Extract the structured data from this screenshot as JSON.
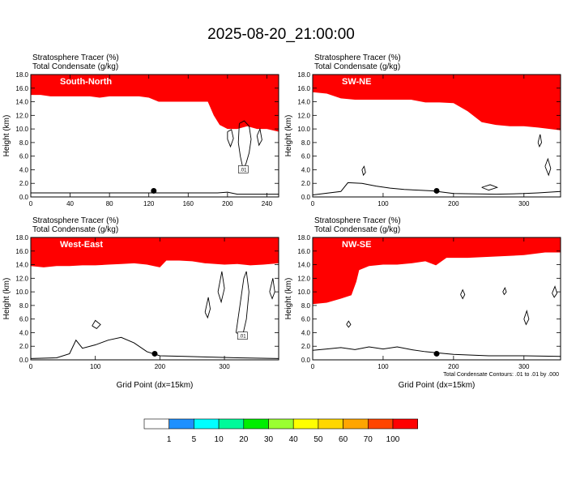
{
  "figure": {
    "title": "2025-08-20_21:00:00",
    "note": "Total Condensate Contours: .01 to .01 by .000"
  },
  "chart_data": [
    {
      "type": "heatmap",
      "panel": "South-North",
      "header_line1": "Stratosphere Tracer   (%)",
      "header_line2": "Total Condensate   (g/kg)",
      "xlabel": "",
      "ylabel": "Height (km)",
      "xlim": [
        0,
        252
      ],
      "ylim": [
        0,
        18
      ],
      "xticks": [
        "0",
        "40",
        "80",
        "120",
        "160",
        "200",
        "240"
      ],
      "yticks": [
        "0.0",
        "2.0",
        "4.0",
        "6.0",
        "8.0",
        "10.0",
        "12.0",
        "14.0",
        "16.0",
        "18.0"
      ],
      "tracer_base_km": [
        [
          0,
          15.0
        ],
        [
          10,
          15.0
        ],
        [
          20,
          14.8
        ],
        [
          30,
          14.8
        ],
        [
          40,
          14.8
        ],
        [
          50,
          14.8
        ],
        [
          60,
          14.8
        ],
        [
          70,
          14.6
        ],
        [
          80,
          14.8
        ],
        [
          90,
          14.8
        ],
        [
          100,
          14.8
        ],
        [
          110,
          14.8
        ],
        [
          120,
          14.6
        ],
        [
          130,
          14.0
        ],
        [
          140,
          14.0
        ],
        [
          150,
          14.0
        ],
        [
          160,
          14.0
        ],
        [
          170,
          14.0
        ],
        [
          180,
          14.0
        ],
        [
          186,
          12.0
        ],
        [
          192,
          10.6
        ],
        [
          200,
          10.0
        ],
        [
          210,
          10.0
        ],
        [
          220,
          10.4
        ],
        [
          230,
          10.0
        ],
        [
          240,
          10.0
        ],
        [
          252,
          9.6
        ]
      ],
      "contour_label": ".01",
      "cloud_contours": [
        [
          [
            212,
            10.8
          ],
          [
            217,
            11.2
          ],
          [
            222,
            10.4
          ],
          [
            224,
            8.5
          ],
          [
            222,
            6.5
          ],
          [
            219,
            5.0
          ],
          [
            216,
            4.0
          ],
          [
            213,
            6.0
          ],
          [
            211,
            8.0
          ],
          [
            212,
            10.8
          ]
        ],
        [
          [
            200,
            9.6
          ],
          [
            204,
            9.9
          ],
          [
            206,
            8.6
          ],
          [
            203,
            7.4
          ],
          [
            200,
            8.5
          ],
          [
            200,
            9.6
          ]
        ],
        [
          [
            230,
            9.0
          ],
          [
            233,
            10.0
          ],
          [
            235,
            8.4
          ],
          [
            232,
            7.6
          ],
          [
            230,
            9.0
          ]
        ]
      ],
      "terrain_km": [
        [
          0,
          0.6
        ],
        [
          40,
          0.6
        ],
        [
          80,
          0.6
        ],
        [
          120,
          0.6
        ],
        [
          150,
          0.6
        ],
        [
          190,
          0.6
        ],
        [
          200,
          0.7
        ],
        [
          210,
          0.4
        ],
        [
          252,
          0.4
        ]
      ],
      "marker_x": 125
    },
    {
      "type": "heatmap",
      "panel": "SW-NE",
      "header_line1": "Stratosphere Tracer   (%)",
      "header_line2": "Total Condensate   (g/kg)",
      "xlabel": "",
      "ylabel": "Height (km)",
      "xlim": [
        0,
        352
      ],
      "ylim": [
        0,
        18
      ],
      "xticks": [
        "0",
        "100",
        "200",
        "300"
      ],
      "yticks": [
        "0.0",
        "2.0",
        "4.0",
        "6.0",
        "8.0",
        "10.0",
        "12.0",
        "14.0",
        "16.0",
        "18.0"
      ],
      "tracer_base_km": [
        [
          0,
          15.4
        ],
        [
          20,
          15.2
        ],
        [
          40,
          14.5
        ],
        [
          60,
          14.3
        ],
        [
          80,
          14.3
        ],
        [
          100,
          14.3
        ],
        [
          120,
          14.3
        ],
        [
          140,
          14.3
        ],
        [
          160,
          13.9
        ],
        [
          180,
          13.9
        ],
        [
          200,
          13.8
        ],
        [
          220,
          12.6
        ],
        [
          240,
          11.0
        ],
        [
          260,
          10.6
        ],
        [
          280,
          10.4
        ],
        [
          300,
          10.4
        ],
        [
          320,
          10.2
        ],
        [
          352,
          9.8
        ]
      ],
      "contour_label": "",
      "cloud_contours": [
        [
          [
            330,
            4.5
          ],
          [
            334,
            5.6
          ],
          [
            338,
            4.2
          ],
          [
            335,
            3.2
          ],
          [
            330,
            4.5
          ]
        ],
        [
          [
            320,
            8.0
          ],
          [
            323,
            9.2
          ],
          [
            325,
            8.0
          ],
          [
            322,
            7.4
          ],
          [
            320,
            8.0
          ]
        ],
        [
          [
            240,
            1.4
          ],
          [
            252,
            1.8
          ],
          [
            262,
            1.4
          ],
          [
            250,
            1.0
          ],
          [
            240,
            1.4
          ]
        ],
        [
          [
            70,
            4.0
          ],
          [
            73,
            4.5
          ],
          [
            75,
            3.6
          ],
          [
            72,
            3.2
          ],
          [
            70,
            4.0
          ]
        ]
      ],
      "terrain_km": [
        [
          0,
          0.3
        ],
        [
          40,
          0.8
        ],
        [
          50,
          2.1
        ],
        [
          70,
          2.0
        ],
        [
          90,
          1.6
        ],
        [
          110,
          1.3
        ],
        [
          130,
          1.1
        ],
        [
          150,
          1.0
        ],
        [
          170,
          0.9
        ],
        [
          200,
          0.5
        ],
        [
          260,
          0.4
        ],
        [
          300,
          0.5
        ],
        [
          320,
          0.6
        ],
        [
          352,
          0.8
        ]
      ],
      "marker_x": 176
    },
    {
      "type": "heatmap",
      "panel": "West-East",
      "header_line1": "Stratosphere Tracer   (%)",
      "header_line2": "Total Condensate   (g/kg)",
      "xlabel": "Grid Point (dx=15km)",
      "ylabel": "Height (km)",
      "xlim": [
        0,
        384
      ],
      "ylim": [
        0,
        18
      ],
      "xticks": [
        "0",
        "100",
        "200",
        "300"
      ],
      "yticks": [
        "0.0",
        "2.0",
        "4.0",
        "6.0",
        "8.0",
        "10.0",
        "12.0",
        "14.0",
        "16.0",
        "18.0"
      ],
      "tracer_base_km": [
        [
          0,
          13.8
        ],
        [
          20,
          13.6
        ],
        [
          40,
          13.8
        ],
        [
          60,
          13.8
        ],
        [
          80,
          13.9
        ],
        [
          100,
          13.9
        ],
        [
          120,
          14.0
        ],
        [
          140,
          14.1
        ],
        [
          160,
          14.2
        ],
        [
          180,
          14.0
        ],
        [
          200,
          13.6
        ],
        [
          210,
          14.6
        ],
        [
          230,
          14.6
        ],
        [
          250,
          14.5
        ],
        [
          270,
          14.2
        ],
        [
          300,
          14.0
        ],
        [
          320,
          14.1
        ],
        [
          340,
          13.9
        ],
        [
          360,
          14.0
        ],
        [
          384,
          14.2
        ]
      ],
      "contour_label": ".01",
      "cloud_contours": [
        [
          [
            318,
            4.0
          ],
          [
            324,
            8.0
          ],
          [
            330,
            12.0
          ],
          [
            334,
            13.0
          ],
          [
            338,
            10.0
          ],
          [
            334,
            6.0
          ],
          [
            328,
            3.5
          ],
          [
            318,
            4.0
          ]
        ],
        [
          [
            290,
            10.0
          ],
          [
            296,
            13.0
          ],
          [
            300,
            10.5
          ],
          [
            295,
            8.5
          ],
          [
            290,
            10.0
          ]
        ],
        [
          [
            270,
            7.0
          ],
          [
            275,
            9.2
          ],
          [
            278,
            7.5
          ],
          [
            274,
            6.2
          ],
          [
            270,
            7.0
          ]
        ],
        [
          [
            370,
            10.0
          ],
          [
            375,
            12.0
          ],
          [
            378,
            10.0
          ],
          [
            374,
            9.0
          ],
          [
            370,
            10.0
          ]
        ],
        [
          [
            95,
            5.0
          ],
          [
            100,
            5.8
          ],
          [
            108,
            5.2
          ],
          [
            102,
            4.6
          ],
          [
            95,
            5.0
          ]
        ]
      ],
      "terrain_km": [
        [
          0,
          0.2
        ],
        [
          40,
          0.3
        ],
        [
          60,
          0.9
        ],
        [
          70,
          2.9
        ],
        [
          80,
          1.7
        ],
        [
          100,
          2.2
        ],
        [
          120,
          2.9
        ],
        [
          140,
          3.3
        ],
        [
          160,
          2.5
        ],
        [
          180,
          1.2
        ],
        [
          200,
          0.6
        ],
        [
          240,
          0.5
        ],
        [
          280,
          0.4
        ],
        [
          320,
          0.3
        ],
        [
          384,
          0.2
        ]
      ],
      "marker_x": 192
    },
    {
      "type": "heatmap",
      "panel": "NW-SE",
      "header_line1": "Stratosphere Tracer   (%)",
      "header_line2": "Total Condensate   (g/kg)",
      "xlabel": "Grid Point (dx=15km)",
      "ylabel": "Height (km)",
      "xlim": [
        0,
        352
      ],
      "ylim": [
        0,
        18
      ],
      "xticks": [
        "0",
        "100",
        "200",
        "300"
      ],
      "yticks": [
        "0.0",
        "2.0",
        "4.0",
        "6.0",
        "8.0",
        "10.0",
        "12.0",
        "14.0",
        "16.0",
        "18.0"
      ],
      "tracer_base_km": [
        [
          0,
          8.2
        ],
        [
          20,
          8.4
        ],
        [
          40,
          9.0
        ],
        [
          55,
          9.5
        ],
        [
          62,
          11.5
        ],
        [
          66,
          13.2
        ],
        [
          80,
          13.8
        ],
        [
          100,
          14.0
        ],
        [
          120,
          14.0
        ],
        [
          140,
          14.2
        ],
        [
          160,
          14.5
        ],
        [
          175,
          13.9
        ],
        [
          190,
          15.0
        ],
        [
          220,
          15.0
        ],
        [
          260,
          15.2
        ],
        [
          300,
          15.4
        ],
        [
          330,
          15.8
        ],
        [
          352,
          15.8
        ]
      ],
      "contour_label": "",
      "cloud_contours": [
        [
          [
            300,
            6.0
          ],
          [
            304,
            7.2
          ],
          [
            307,
            6.0
          ],
          [
            303,
            5.2
          ],
          [
            300,
            6.0
          ]
        ],
        [
          [
            210,
            9.6
          ],
          [
            213,
            10.3
          ],
          [
            216,
            9.6
          ],
          [
            213,
            9.0
          ],
          [
            210,
            9.6
          ]
        ],
        [
          [
            340,
            9.8
          ],
          [
            344,
            10.8
          ],
          [
            347,
            9.8
          ],
          [
            343,
            9.2
          ],
          [
            340,
            9.8
          ]
        ],
        [
          [
            270,
            10.0
          ],
          [
            273,
            10.6
          ],
          [
            275,
            10.0
          ],
          [
            272,
            9.6
          ],
          [
            270,
            10.0
          ]
        ],
        [
          [
            48,
            5.2
          ],
          [
            51,
            5.7
          ],
          [
            54,
            5.2
          ],
          [
            51,
            4.8
          ],
          [
            48,
            5.2
          ]
        ]
      ],
      "terrain_km": [
        [
          0,
          1.4
        ],
        [
          20,
          1.6
        ],
        [
          40,
          1.8
        ],
        [
          60,
          1.5
        ],
        [
          80,
          1.9
        ],
        [
          100,
          1.6
        ],
        [
          120,
          1.9
        ],
        [
          140,
          1.5
        ],
        [
          160,
          1.2
        ],
        [
          180,
          1.0
        ],
        [
          200,
          0.8
        ],
        [
          250,
          0.6
        ],
        [
          300,
          0.6
        ],
        [
          352,
          0.5
        ]
      ],
      "marker_x": 176
    }
  ],
  "colorbar": {
    "labels": [
      "1",
      "5",
      "10",
      "20",
      "30",
      "40",
      "50",
      "60",
      "70",
      "100"
    ],
    "colors": [
      "#ffffff",
      "#1e90ff",
      "#00ffff",
      "#00fa9a",
      "#00ee00",
      "#9aff32",
      "#ffff00",
      "#ffd700",
      "#ffa500",
      "#ff4500",
      "#ff0000"
    ]
  }
}
